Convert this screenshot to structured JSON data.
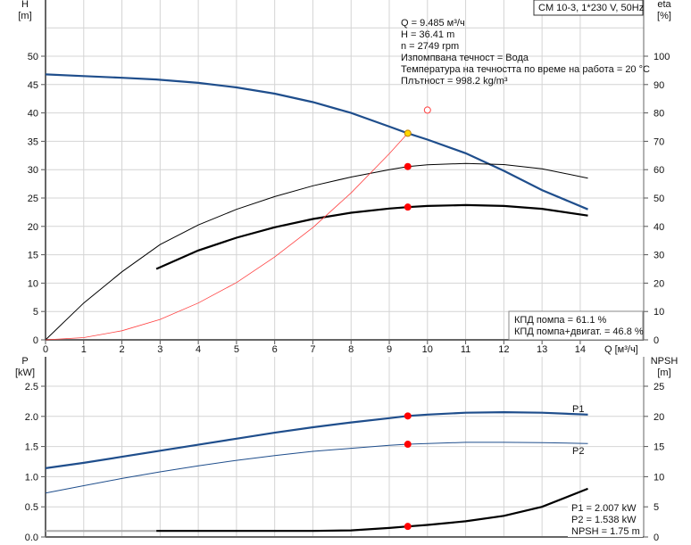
{
  "chart_data": [
    {
      "type": "line",
      "title": "CM 10-3, 1*230 V, 50Hz",
      "xlabel": "Q [м³/ч]",
      "xlim": [
        0,
        15.8
      ],
      "xticks": [
        0,
        1,
        2,
        3,
        4,
        5,
        6,
        7,
        8,
        9,
        10,
        11,
        12,
        13,
        14
      ],
      "ylabel_left": [
        "H",
        "[m]"
      ],
      "ylim_left": [
        0,
        50
      ],
      "yticks_left": [
        0,
        5,
        10,
        15,
        20,
        25,
        30,
        35,
        40,
        45,
        50
      ],
      "ylabel_right": [
        "eta",
        "[%]"
      ],
      "ylim_right": [
        0,
        100
      ],
      "yticks_right": [
        0,
        10,
        20,
        30,
        40,
        50,
        60,
        70,
        80,
        90,
        100
      ],
      "grid": true,
      "series": [
        {
          "name": "H",
          "axis": "left",
          "color": "#1f4e8c",
          "x": [
            0,
            1,
            2,
            2.9,
            4,
            5,
            6,
            7,
            8,
            9,
            9.485,
            10,
            11,
            12,
            13,
            14.2
          ],
          "y": [
            46.8,
            46.5,
            46.2,
            45.9,
            45.3,
            44.5,
            43.4,
            41.9,
            40,
            37.6,
            36.41,
            35.3,
            32.9,
            29.8,
            26.4,
            23
          ]
        },
        {
          "name": "КПД помпа",
          "axis": "right",
          "color": "#000000",
          "x": [
            0,
            1,
            2,
            3,
            4,
            5,
            6,
            7,
            8,
            9,
            9.485,
            10,
            11,
            12,
            13,
            14.2
          ],
          "y": [
            0,
            13,
            24,
            33.6,
            40.5,
            46,
            50.5,
            54.3,
            57.4,
            60,
            61.1,
            61.7,
            62.2,
            61.8,
            60.3,
            57
          ]
        },
        {
          "name": "КПД помпа+двигат.",
          "axis": "right",
          "color": "#000000",
          "x": [
            2.9,
            4,
            5,
            6,
            7,
            8,
            9,
            9.485,
            10,
            11,
            12,
            13,
            14.2
          ],
          "y": [
            25,
            31.5,
            36,
            39.7,
            42.6,
            44.8,
            46.3,
            46.8,
            47.2,
            47.5,
            47.2,
            46.2,
            43.8
          ]
        },
        {
          "name": "system",
          "axis": "left",
          "color": "#ff4040",
          "x": [
            0,
            1,
            2,
            3,
            4,
            5,
            6,
            7,
            8,
            9,
            9.485
          ],
          "y": [
            0,
            0.4,
            1.6,
            3.6,
            6.5,
            10.1,
            14.6,
            19.8,
            25.9,
            32.8,
            36.41
          ]
        }
      ],
      "points": [
        {
          "name": "duty-point",
          "x": 9.485,
          "y": 36.41,
          "axis": "left",
          "color": "#ffd700"
        },
        {
          "name": "eta-pump-point",
          "x": 9.485,
          "y": 61.1,
          "axis": "right",
          "color": "#ff0000"
        },
        {
          "name": "eta-total-point",
          "x": 9.485,
          "y": 46.8,
          "axis": "right",
          "color": "#ff0000"
        },
        {
          "name": "system-end-point",
          "x": 10,
          "y": 40.5,
          "axis": "left",
          "color": "#ff4040",
          "open": true
        }
      ],
      "info": [
        "Q = 9.485 м³/ч",
        "H = 36.41 m",
        "n = 2749 rpm",
        "Изпомпвана течност = Вода",
        "Температура на течността по време на работа = 20 °C",
        "Плътност = 998.2 kg/m³"
      ],
      "eff": [
        "КПД помпа = 61.1 %",
        "КПД помпа+двигат. = 46.8 %"
      ]
    },
    {
      "type": "line",
      "ylabel_left": [
        "P",
        "[kW]"
      ],
      "ylim_left": [
        0,
        2.9
      ],
      "yticks_left": [
        "0.0",
        "0.5",
        "1.0",
        "1.5",
        "2.0",
        "2.5"
      ],
      "ylabel_right": [
        "NPSH",
        "[m]"
      ],
      "ylim_right": [
        0,
        29
      ],
      "yticks_right": [
        0,
        5,
        10,
        15,
        20,
        25
      ],
      "series": [
        {
          "name": "P1",
          "axis": "left",
          "color": "#1f4e8c",
          "x": [
            0,
            1,
            2,
            3,
            4,
            5,
            6,
            7,
            8,
            9,
            9.485,
            10,
            11,
            12,
            13,
            14.2
          ],
          "y": [
            1.14,
            1.23,
            1.33,
            1.43,
            1.53,
            1.63,
            1.73,
            1.82,
            1.9,
            1.97,
            2.007,
            2.03,
            2.06,
            2.07,
            2.06,
            2.03
          ]
        },
        {
          "name": "P2",
          "axis": "left",
          "color": "#1f4e8c",
          "x": [
            0,
            1,
            2,
            3,
            4,
            5,
            6,
            7,
            8,
            9,
            9.485,
            10,
            11,
            12,
            13,
            14.2
          ],
          "y": [
            0.73,
            0.85,
            0.97,
            1.08,
            1.18,
            1.27,
            1.35,
            1.42,
            1.47,
            1.52,
            1.538,
            1.55,
            1.57,
            1.57,
            1.565,
            1.55
          ]
        },
        {
          "name": "NPSH",
          "axis": "right",
          "color": "#000000",
          "x": [
            2.9,
            5,
            7,
            8,
            9,
            9.485,
            10,
            11,
            12,
            13,
            14.2
          ],
          "y": [
            1,
            1,
            1,
            1.1,
            1.5,
            1.75,
            2,
            2.6,
            3.5,
            5,
            8
          ]
        }
      ],
      "points": [
        {
          "name": "p1-point",
          "x": 9.485,
          "y": 2.007,
          "axis": "left",
          "color": "#ff0000"
        },
        {
          "name": "p2-point",
          "x": 9.485,
          "y": 1.538,
          "axis": "left",
          "color": "#ff0000"
        },
        {
          "name": "npsh-point",
          "x": 9.485,
          "y": 1.75,
          "axis": "right",
          "color": "#ff0000"
        }
      ],
      "labels": [
        "P1",
        "P2"
      ],
      "info": [
        "P1 = 2.007 kW",
        "P2 = 1.538 kW",
        "NPSH = 1.75 m"
      ]
    }
  ]
}
